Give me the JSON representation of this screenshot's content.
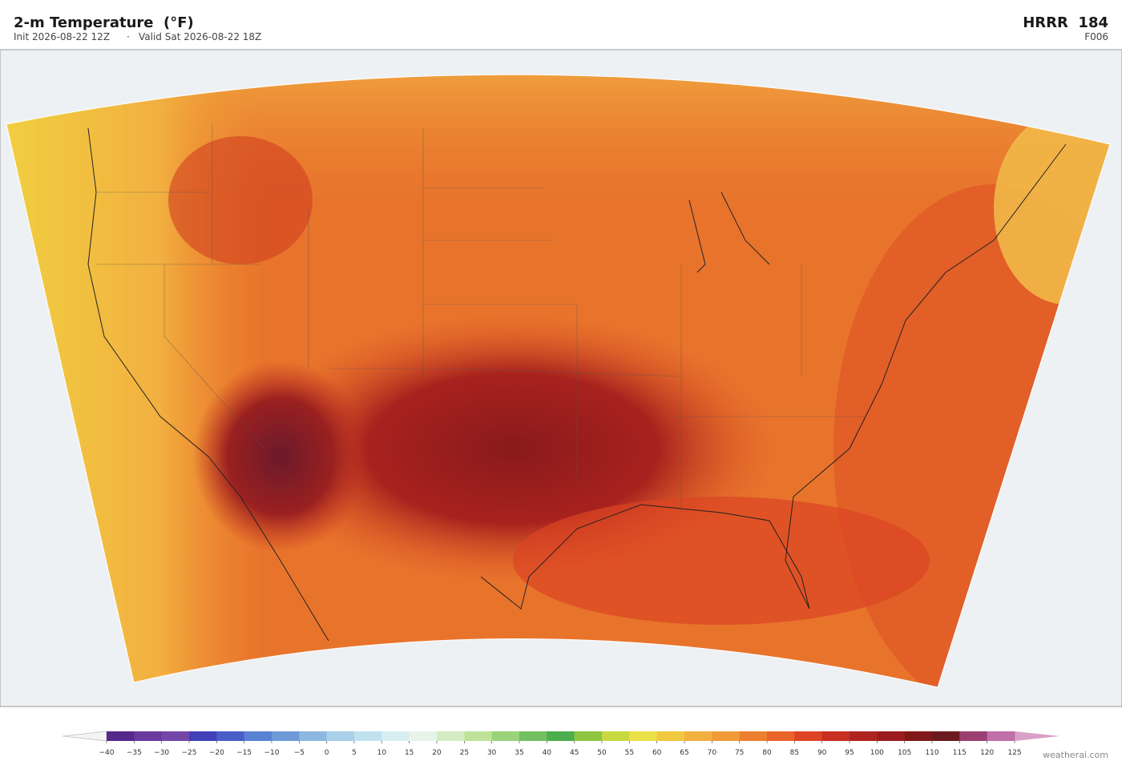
{
  "header": {
    "title": "2-m Temperature  (°F)",
    "init": "Init 2026-08-22 12Z",
    "separator": "·",
    "valid": "Valid Sat 2026-08-22 18Z",
    "model": "HRRR  184",
    "forecast_hour": "F006"
  },
  "colorbar": {
    "ticks": [
      {
        "value": -40,
        "label": "−40"
      },
      {
        "value": -35,
        "label": "−35"
      },
      {
        "value": -30,
        "label": "−30"
      },
      {
        "value": -25,
        "label": "−25"
      },
      {
        "value": -20,
        "label": "−20"
      },
      {
        "value": -15,
        "label": "−15"
      },
      {
        "value": -10,
        "label": "−10"
      },
      {
        "value": -5,
        "label": "−5"
      },
      0,
      5,
      10,
      15,
      20,
      25,
      30,
      35,
      40,
      45,
      50,
      55,
      60,
      65,
      70,
      75,
      80,
      85,
      90,
      95,
      100,
      105,
      110,
      115,
      120,
      125
    ],
    "colors": [
      "#55288c",
      "#6a3a9e",
      "#7446a8",
      "#4040b8",
      "#4a5ec8",
      "#5a82d4",
      "#6f9ad8",
      "#8cb8e0",
      "#a8d0e8",
      "#c0e2ef",
      "#d8eff2",
      "#e6f5e8",
      "#d4ecc4",
      "#bfe29a",
      "#9ad47a",
      "#72c060",
      "#4cae4c",
      "#8cc640",
      "#c8d840",
      "#ece048",
      "#f2c840",
      "#f2b040",
      "#f09a38",
      "#ec8030",
      "#e86428",
      "#dc4424",
      "#c83020",
      "#b02420",
      "#9a1c1c",
      "#801818",
      "#6b1a1f",
      "#9b4070",
      "#c070a8"
    ],
    "over_color": "#d8a0c8",
    "under_color": "#f4f4f4"
  },
  "footer": {
    "credit": "weatherai.com"
  }
}
